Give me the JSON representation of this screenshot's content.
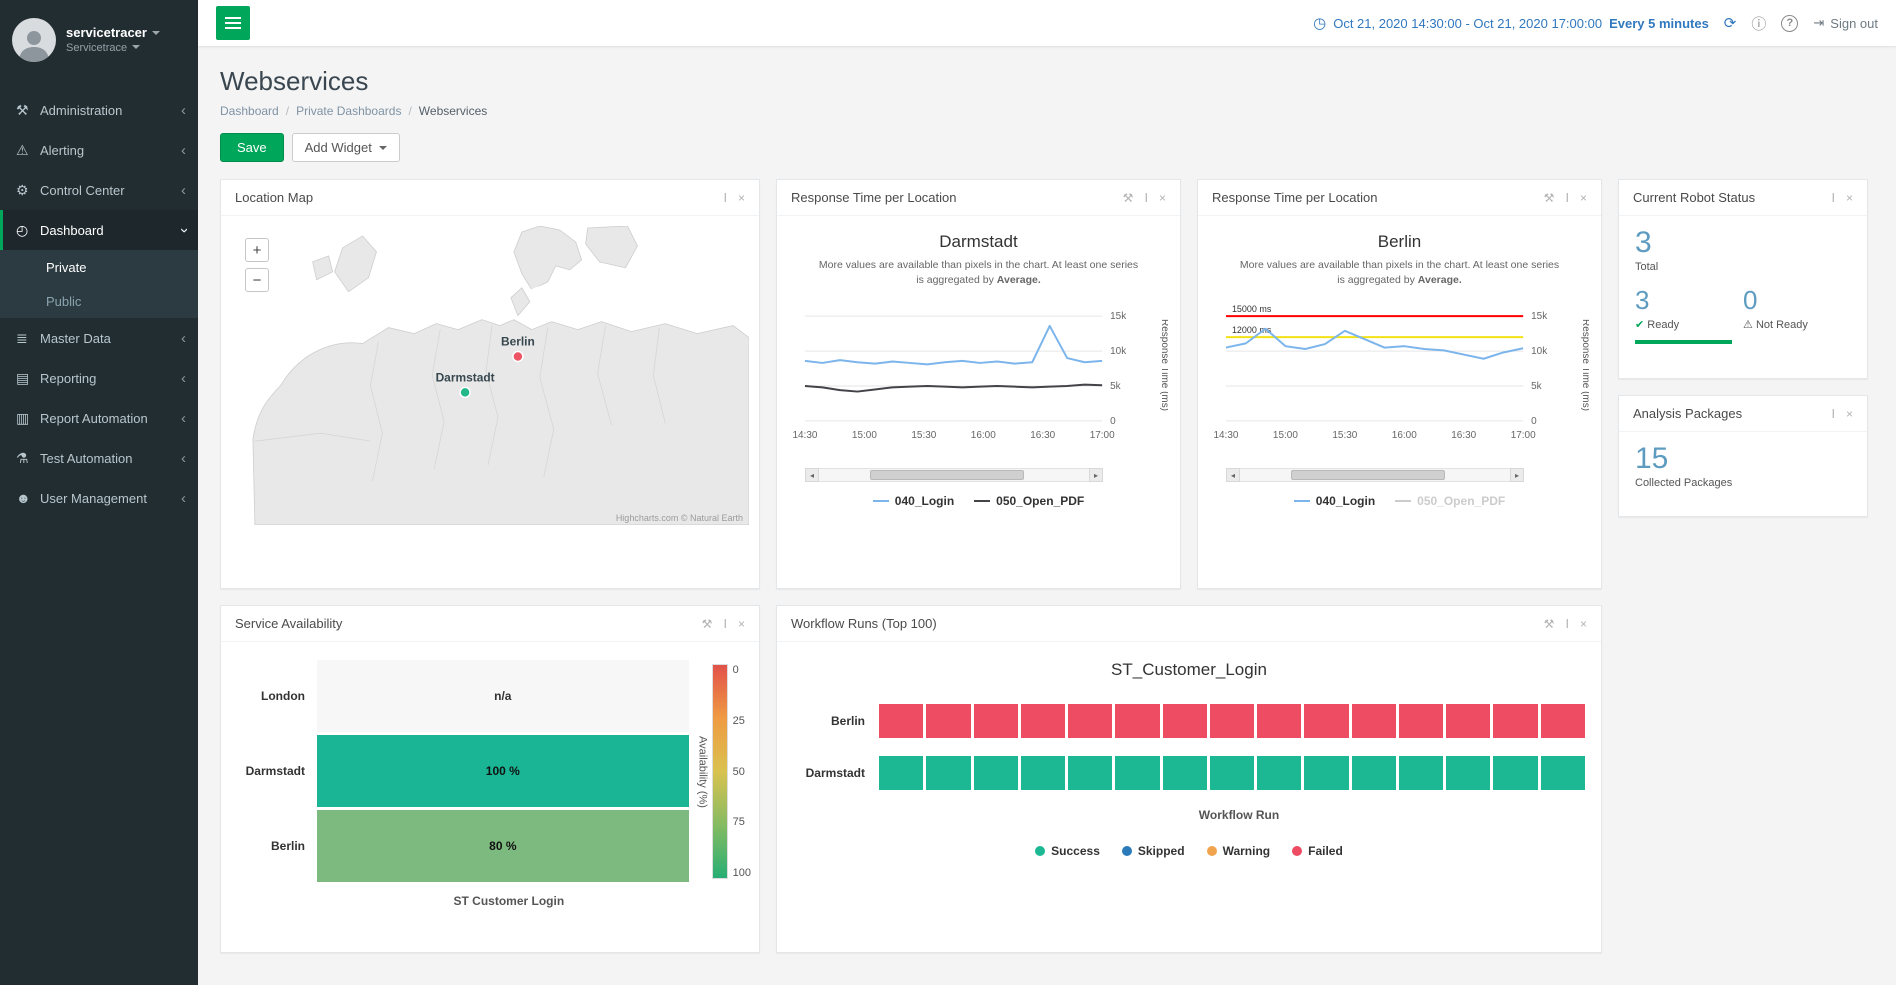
{
  "app": {
    "user_name": "servicetracer",
    "account_name": "Servicetrace"
  },
  "colors": {
    "accent_green": "#00a65a",
    "link_blue": "#3178be",
    "stat_blue": "#5d9cc0",
    "sidebar_bg": "#222d32"
  },
  "icons": {
    "clock": "◷",
    "refresh": "⟳",
    "info": "ⓘ",
    "help": "?",
    "sign-out": "⇥",
    "wrench": "⚒",
    "move": "Ⅰ",
    "close": "×",
    "chevron": "‹",
    "administration": "⚒",
    "alerting": "⚠",
    "control-center": "⚙",
    "dashboard": "◴",
    "master-data": "≣",
    "reporting": "▤",
    "report-automation": "▥",
    "test-automation": "⚗",
    "user-management": "☻",
    "check": "✔",
    "warning": "⚠"
  },
  "topbar": {
    "time_range": "Oct 21, 2020 14:30:00 - Oct 21, 2020 17:00:00",
    "refresh_interval": "Every 5 minutes",
    "sign_out_label": "Sign out"
  },
  "sidebar": {
    "items": [
      {
        "label": "Administration"
      },
      {
        "label": "Alerting"
      },
      {
        "label": "Control Center"
      },
      {
        "label": "Dashboard",
        "active": true,
        "children": [
          {
            "label": "Private",
            "active": true
          },
          {
            "label": "Public"
          }
        ]
      },
      {
        "label": "Master Data"
      },
      {
        "label": "Reporting"
      },
      {
        "label": "Report Automation"
      },
      {
        "label": "Test Automation"
      },
      {
        "label": "User Management"
      }
    ]
  },
  "page": {
    "title": "Webservices",
    "breadcrumb": [
      "Dashboard",
      "Private Dashboards",
      "Webservices"
    ],
    "separator": "/",
    "save_label": "Save",
    "add_widget_label": "Add Widget"
  },
  "widgets": {
    "location_map": {
      "title": "Location Map",
      "zoom_in": "+",
      "zoom_out": "−",
      "markers": [
        {
          "name": "Berlin",
          "color": "#ed5565"
        },
        {
          "name": "Darmstadt",
          "color": "#23b88a"
        }
      ],
      "attribution": "Highcharts.com © Natural Earth"
    },
    "robot_status": {
      "title": "Current Robot Status",
      "total_value": "3",
      "total_label": "Total",
      "ready_value": "3",
      "ready_label": "Ready",
      "not_ready_value": "0",
      "not_ready_label": "Not Ready"
    },
    "analysis_packages": {
      "title": "Analysis Packages",
      "value": "15",
      "label": "Collected Packages"
    }
  },
  "chart_data": [
    {
      "id": "response_time_darmstadt",
      "type": "line",
      "panel_title": "Response Time per Location",
      "title": "Darmstadt",
      "subtitle": "More values are available than pixels in the chart. At least one series is aggregated by",
      "subtitle_bold": "Average.",
      "ylabel": "Response Time (ms)",
      "ylim": [
        0,
        16000
      ],
      "y_ticks": [
        {
          "value": 0,
          "label": "0"
        },
        {
          "value": 5000,
          "label": "5k"
        },
        {
          "value": 10000,
          "label": "10k"
        },
        {
          "value": 15000,
          "label": "15k"
        }
      ],
      "x_ticks": [
        "14:30",
        "15:00",
        "15:30",
        "16:00",
        "16:30",
        "17:00"
      ],
      "series": [
        {
          "name": "040_Login",
          "color": "#7cb5ec",
          "values": [
            8600,
            8300,
            8700,
            8400,
            8200,
            8500,
            8300,
            8100,
            8400,
            8600,
            8300,
            8500,
            8200,
            8400,
            13600,
            9000,
            8400,
            8600
          ]
        },
        {
          "name": "050_Open_PDF",
          "color": "#434348",
          "values": [
            5000,
            4800,
            4400,
            4200,
            4500,
            4800,
            4900,
            5000,
            4900,
            4800,
            4900,
            5000,
            4900,
            4800,
            4900,
            5000,
            5200,
            5100
          ]
        }
      ],
      "legend": [
        {
          "label": "040_Login",
          "color": "#7cb5ec",
          "enabled": true
        },
        {
          "label": "050_Open_PDF",
          "color": "#434348",
          "enabled": true
        }
      ]
    },
    {
      "id": "response_time_berlin",
      "type": "line",
      "panel_title": "Response Time per Location",
      "title": "Berlin",
      "subtitle": "More values are available than pixels in the chart. At least one series is aggregated by",
      "subtitle_bold": "Average.",
      "ylabel": "Response Time (ms)",
      "ylim": [
        0,
        16000
      ],
      "y_ticks": [
        {
          "value": 0,
          "label": "0"
        },
        {
          "value": 5000,
          "label": "5k"
        },
        {
          "value": 10000,
          "label": "10k"
        },
        {
          "value": 15000,
          "label": "15k"
        }
      ],
      "x_ticks": [
        "14:30",
        "15:00",
        "15:30",
        "16:00",
        "16:30",
        "17:00"
      ],
      "thresholds": [
        {
          "value": 15000,
          "label": "15000 ms",
          "color": "#ff0000"
        },
        {
          "value": 12000,
          "label": "12000 ms",
          "color": "#f2e215"
        }
      ],
      "series": [
        {
          "name": "040_Login",
          "color": "#7cb5ec",
          "values": [
            10500,
            11100,
            13200,
            10700,
            10300,
            11000,
            12900,
            11700,
            10500,
            10700,
            10300,
            10100,
            9500,
            8900,
            9800,
            10400
          ]
        }
      ],
      "legend": [
        {
          "label": "040_Login",
          "color": "#7cb5ec",
          "enabled": true
        },
        {
          "label": "050_Open_PDF",
          "color": "#434348",
          "enabled": false
        }
      ]
    },
    {
      "id": "service_availability",
      "type": "bar",
      "panel_title": "Service Availability",
      "xlabel": "ST Customer Login",
      "categories": [
        "London",
        "Darmstadt",
        "Berlin"
      ],
      "values": [
        null,
        100,
        80
      ],
      "rows": [
        {
          "label": "London",
          "value_label": "n/a",
          "color": "#f7f7f7",
          "text_color": "#333333"
        },
        {
          "label": "Darmstadt",
          "value_label": "100 %",
          "color": "#19b594",
          "text_color": "#111111"
        },
        {
          "label": "Berlin",
          "value_label": "80 %",
          "color": "#7cba7f",
          "text_color": "#111111"
        }
      ],
      "color_axis": {
        "title": "Availability (%)",
        "ticks": [
          "0",
          "25",
          "50",
          "75",
          "100"
        ],
        "gradient": [
          "#e2514a",
          "#ef9b43",
          "#d9c24f",
          "#86bb62",
          "#27ae74"
        ]
      }
    },
    {
      "id": "workflow_runs",
      "type": "segmented-bar",
      "panel_title": "Workflow Runs (Top 100)",
      "title": "ST_Customer_Login",
      "xlabel": "Workflow Run",
      "rows": [
        {
          "label": "Berlin",
          "status": "Failed",
          "color": "#ee4c63",
          "segments": 15
        },
        {
          "label": "Darmstadt",
          "status": "Success",
          "color": "#1cb893",
          "segments": 15
        }
      ],
      "legend": [
        {
          "label": "Success",
          "color": "#1cb893"
        },
        {
          "label": "Skipped",
          "color": "#2b7bba"
        },
        {
          "label": "Warning",
          "color": "#f0a44d"
        },
        {
          "label": "Failed",
          "color": "#ee4c63"
        }
      ]
    }
  ]
}
